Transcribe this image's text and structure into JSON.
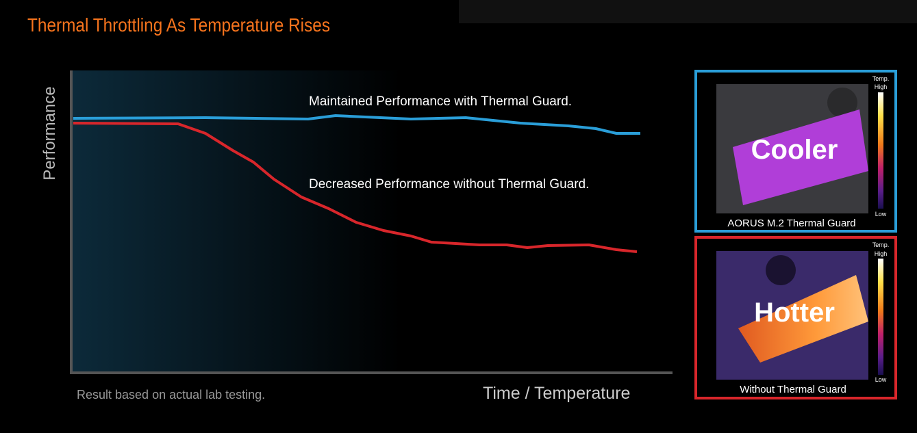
{
  "header": {
    "title": "Thermal Throttling As Temperature Rises"
  },
  "chart": {
    "y_axis_label": "Performance",
    "x_axis_label": "Time / Temperature",
    "note": "Result based on actual lab testing.",
    "line_labels": [
      "Maintained Performance with Thermal Guard.",
      "Decreased Performance without Thermal Guard."
    ]
  },
  "panels": [
    {
      "label": "Cooler",
      "caption": "AORUS M.2 Thermal Guard",
      "scale": {
        "title": "Temp.",
        "high": "High",
        "low": "Low"
      }
    },
    {
      "label": "Hotter",
      "caption": "Without Thermal Guard",
      "scale": {
        "title": "Temp.",
        "high": "High",
        "low": "Low"
      }
    }
  ]
}
